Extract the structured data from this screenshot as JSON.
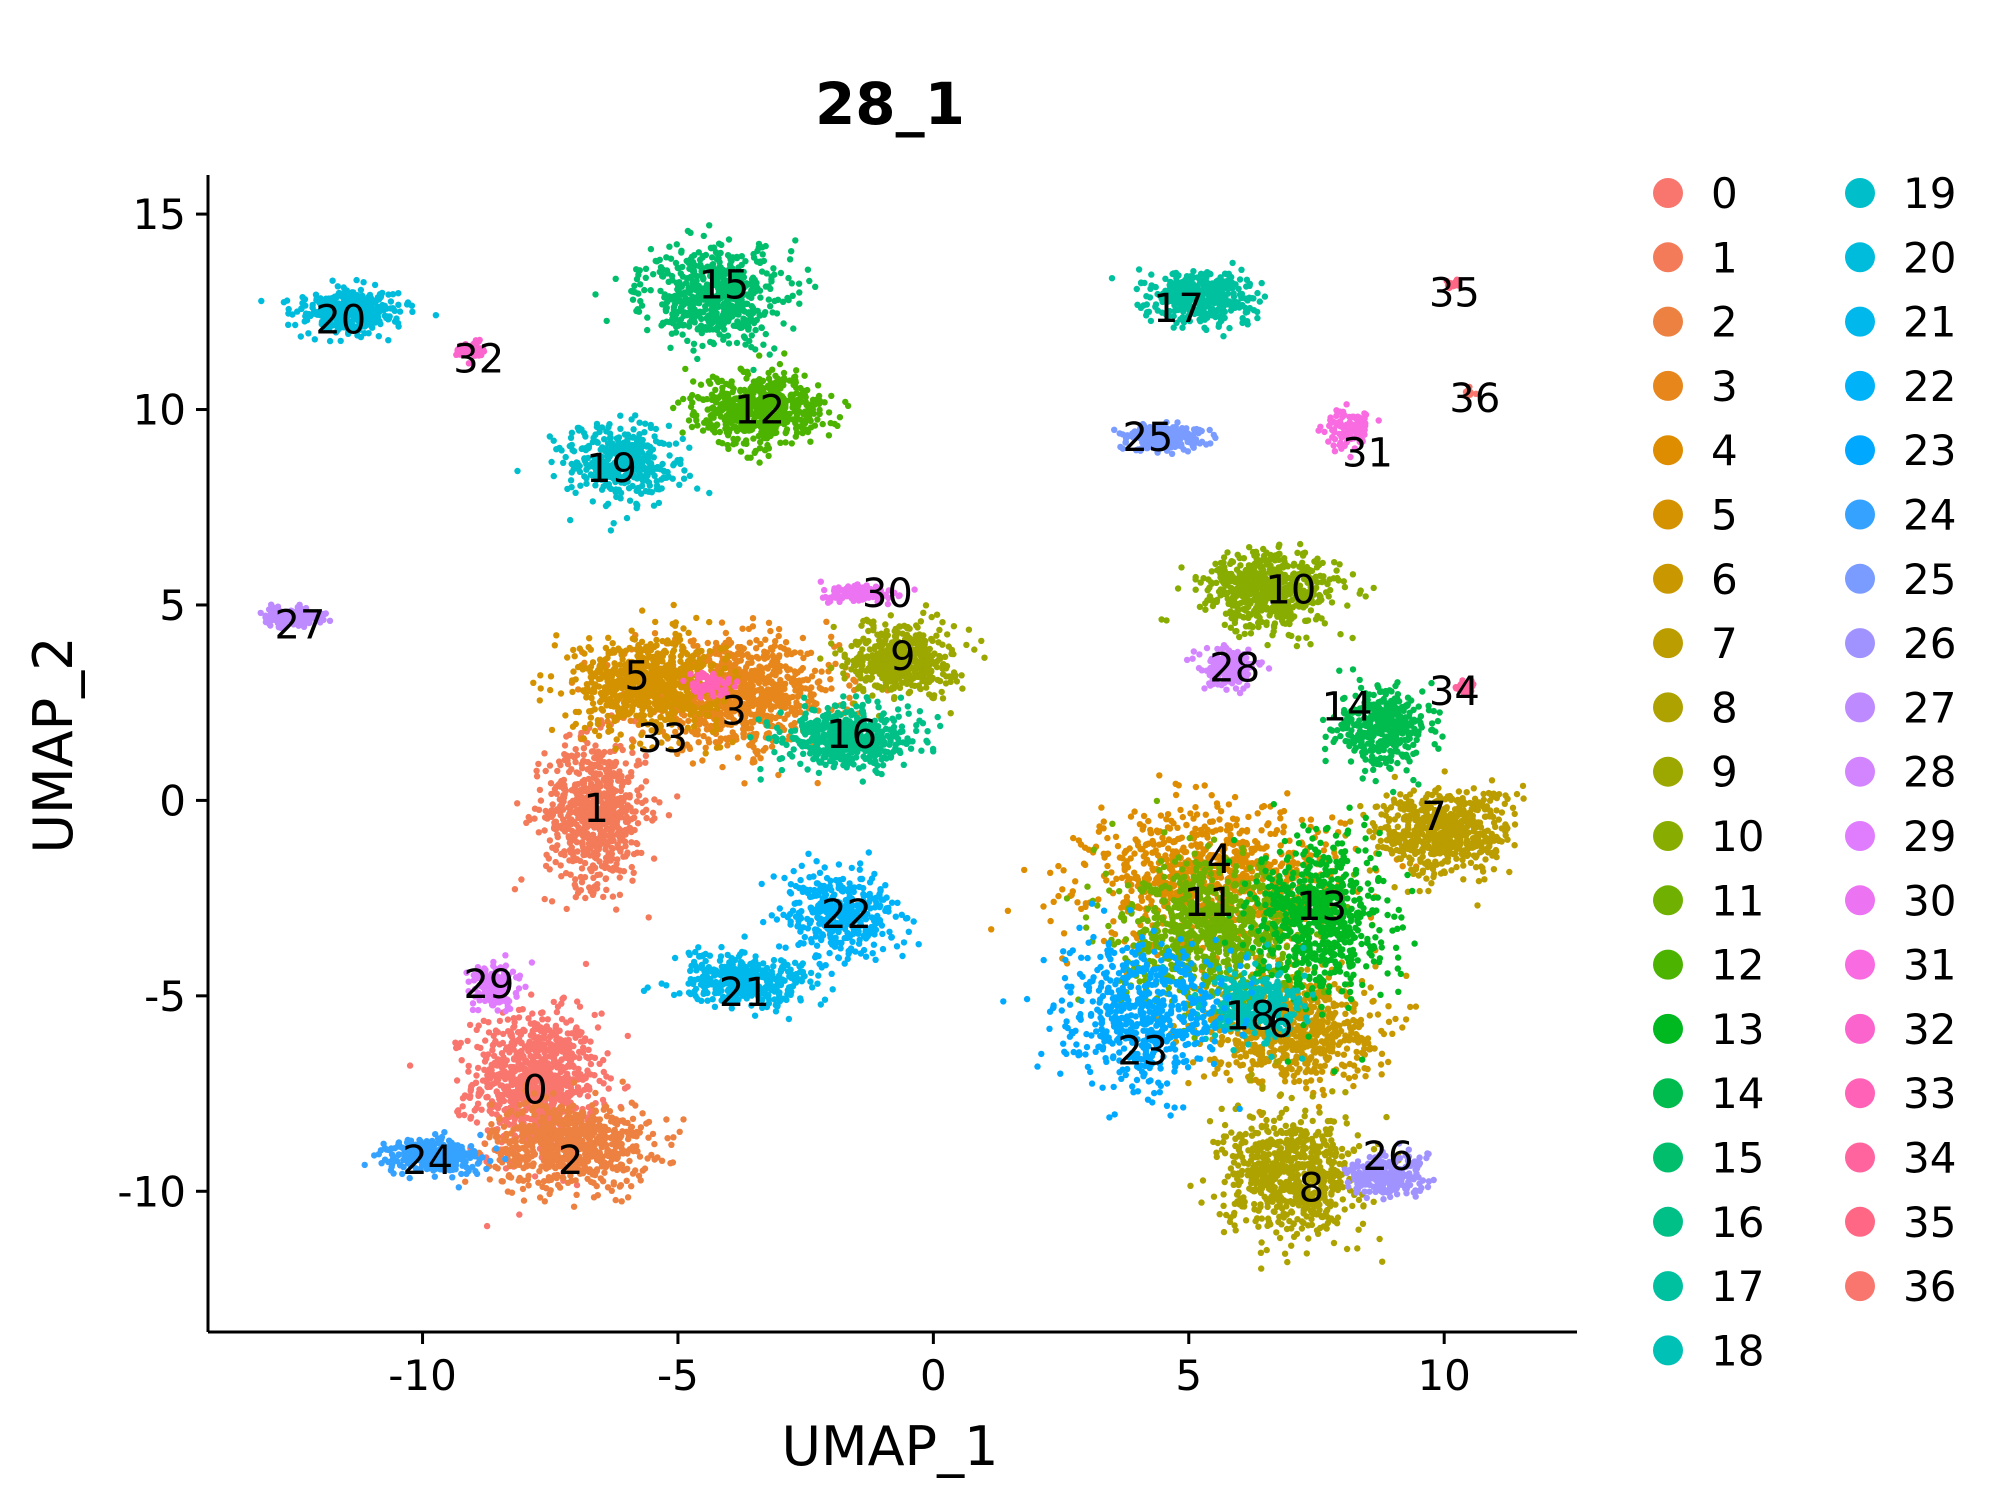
{
  "chart_data": {
    "type": "scatter",
    "title": "28_1",
    "xlabel": "UMAP_1",
    "ylabel": "UMAP_2",
    "xlim": [
      -14.2,
      12.6
    ],
    "ylim": [
      -13.6,
      16.0
    ],
    "xticks": [
      -10,
      -5,
      0,
      5,
      10
    ],
    "yticks": [
      -10,
      -5,
      0,
      5,
      10,
      15
    ],
    "xtick_labels": [
      "-10",
      "-5",
      "0",
      "5",
      "10"
    ],
    "ytick_labels": [
      "-10",
      "-5",
      "0",
      "5",
      "10",
      "15"
    ],
    "grid": false,
    "legend_position": "right",
    "legend_columns": 2,
    "clusters": [
      {
        "name": "0",
        "color": "#F8766D",
        "x": -7.8,
        "y": -7.2,
        "sx": 1.1,
        "sy": 1.6,
        "n": 900
      },
      {
        "name": "1",
        "color": "#F37B59",
        "x": -6.6,
        "y": -0.3,
        "sx": 0.9,
        "sy": 1.7,
        "n": 700
      },
      {
        "name": "2",
        "color": "#ED8141",
        "x": -7.1,
        "y": -8.8,
        "sx": 1.4,
        "sy": 1.0,
        "n": 700
      },
      {
        "name": "3",
        "color": "#E7861B",
        "x": -3.9,
        "y": 2.7,
        "sx": 1.8,
        "sy": 1.2,
        "n": 900
      },
      {
        "name": "4",
        "color": "#DE8C00",
        "x": 5.5,
        "y": -2.0,
        "sx": 2.2,
        "sy": 1.6,
        "n": 900
      },
      {
        "name": "5",
        "color": "#D49200",
        "x": -5.6,
        "y": 3.0,
        "sx": 1.3,
        "sy": 1.1,
        "n": 700
      },
      {
        "name": "6",
        "color": "#C99800",
        "x": 7.0,
        "y": -5.8,
        "sx": 1.5,
        "sy": 1.3,
        "n": 700
      },
      {
        "name": "7",
        "color": "#BB9D00",
        "x": 10.0,
        "y": -0.8,
        "sx": 1.2,
        "sy": 1.0,
        "n": 600
      },
      {
        "name": "8",
        "color": "#ADA200",
        "x": 7.0,
        "y": -9.6,
        "sx": 1.2,
        "sy": 1.4,
        "n": 700
      },
      {
        "name": "9",
        "color": "#9CA700",
        "x": -0.6,
        "y": 3.6,
        "sx": 0.9,
        "sy": 0.8,
        "n": 500
      },
      {
        "name": "10",
        "color": "#88AC00",
        "x": 6.6,
        "y": 5.4,
        "sx": 1.2,
        "sy": 0.9,
        "n": 600
      },
      {
        "name": "11",
        "color": "#6FB000",
        "x": 5.4,
        "y": -3.4,
        "sx": 1.6,
        "sy": 1.6,
        "n": 800
      },
      {
        "name": "12",
        "color": "#4CB400",
        "x": -3.4,
        "y": 10.0,
        "sx": 1.1,
        "sy": 0.8,
        "n": 600
      },
      {
        "name": "13",
        "color": "#00B81F",
        "x": 7.6,
        "y": -3.0,
        "sx": 1.1,
        "sy": 1.8,
        "n": 700
      },
      {
        "name": "14",
        "color": "#00BB4E",
        "x": 8.8,
        "y": 1.9,
        "sx": 0.8,
        "sy": 0.9,
        "n": 400
      },
      {
        "name": "15",
        "color": "#00BE6C",
        "x": -4.3,
        "y": 12.9,
        "sx": 1.2,
        "sy": 1.1,
        "n": 600
      },
      {
        "name": "16",
        "color": "#00C087",
        "x": -1.7,
        "y": 1.6,
        "sx": 1.2,
        "sy": 0.7,
        "n": 500
      },
      {
        "name": "17",
        "color": "#00C19F",
        "x": 5.3,
        "y": 12.9,
        "sx": 0.9,
        "sy": 0.6,
        "n": 400
      },
      {
        "name": "18",
        "color": "#00C1B5",
        "x": 6.2,
        "y": -5.3,
        "sx": 0.9,
        "sy": 0.9,
        "n": 300
      },
      {
        "name": "19",
        "color": "#00BFCA",
        "x": -6.1,
        "y": 8.6,
        "sx": 1.0,
        "sy": 0.9,
        "n": 400
      },
      {
        "name": "20",
        "color": "#00BCDC",
        "x": -11.4,
        "y": 12.5,
        "sx": 0.9,
        "sy": 0.5,
        "n": 400
      },
      {
        "name": "21",
        "color": "#00B8EC",
        "x": -3.7,
        "y": -4.6,
        "sx": 1.2,
        "sy": 0.6,
        "n": 400
      },
      {
        "name": "22",
        "color": "#00B2F8",
        "x": -1.8,
        "y": -2.9,
        "sx": 1.0,
        "sy": 1.0,
        "n": 400
      },
      {
        "name": "23",
        "color": "#00A9FF",
        "x": 4.1,
        "y": -5.5,
        "sx": 1.4,
        "sy": 1.6,
        "n": 600
      },
      {
        "name": "24",
        "color": "#35A2FF",
        "x": -9.8,
        "y": -9.1,
        "sx": 0.9,
        "sy": 0.4,
        "n": 300
      },
      {
        "name": "25",
        "color": "#7A9BFF",
        "x": 4.5,
        "y": 9.3,
        "sx": 0.7,
        "sy": 0.3,
        "n": 250
      },
      {
        "name": "26",
        "color": "#A193FF",
        "x": 8.9,
        "y": -9.6,
        "sx": 0.7,
        "sy": 0.5,
        "n": 250
      },
      {
        "name": "27",
        "color": "#BD8AFF",
        "x": -12.5,
        "y": 4.7,
        "sx": 0.5,
        "sy": 0.2,
        "n": 150
      },
      {
        "name": "28",
        "color": "#D385FF",
        "x": 5.8,
        "y": 3.4,
        "sx": 0.5,
        "sy": 0.4,
        "n": 200
      },
      {
        "name": "29",
        "color": "#E07DFF",
        "x": -8.6,
        "y": -4.8,
        "sx": 0.4,
        "sy": 0.5,
        "n": 150
      },
      {
        "name": "30",
        "color": "#EC74F2",
        "x": -1.5,
        "y": 5.3,
        "sx": 0.6,
        "sy": 0.2,
        "n": 120
      },
      {
        "name": "31",
        "color": "#F86BE1",
        "x": 8.1,
        "y": 9.5,
        "sx": 0.4,
        "sy": 0.5,
        "n": 100
      },
      {
        "name": "32",
        "color": "#FC64CD",
        "x": -9.1,
        "y": 11.5,
        "sx": 0.3,
        "sy": 0.2,
        "n": 60
      },
      {
        "name": "33",
        "color": "#FF62B6",
        "x": -4.4,
        "y": 3.0,
        "sx": 0.4,
        "sy": 0.3,
        "n": 60
      },
      {
        "name": "34",
        "color": "#FF649E",
        "x": 10.4,
        "y": 2.9,
        "sx": 0.2,
        "sy": 0.15,
        "n": 40
      },
      {
        "name": "35",
        "color": "#FF6784",
        "x": 10.2,
        "y": 13.2,
        "sx": 0.12,
        "sy": 0.12,
        "n": 15
      },
      {
        "name": "36",
        "color": "#F8766D",
        "x": 10.5,
        "y": 10.4,
        "sx": 0.12,
        "sy": 0.12,
        "n": 12
      }
    ],
    "cluster_labels": [
      {
        "text": "0",
        "x": -7.8,
        "y": -7.4
      },
      {
        "text": "1",
        "x": -6.6,
        "y": -0.2
      },
      {
        "text": "2",
        "x": -7.1,
        "y": -9.2
      },
      {
        "text": "3",
        "x": -3.9,
        "y": 2.3
      },
      {
        "text": "4",
        "x": 5.6,
        "y": -1.5
      },
      {
        "text": "5",
        "x": -5.8,
        "y": 3.2
      },
      {
        "text": "6",
        "x": 6.8,
        "y": -5.7
      },
      {
        "text": "7",
        "x": 9.8,
        "y": -0.4
      },
      {
        "text": "8",
        "x": 7.4,
        "y": -9.9
      },
      {
        "text": "9",
        "x": -0.6,
        "y": 3.7
      },
      {
        "text": "10",
        "x": 7.0,
        "y": 5.4
      },
      {
        "text": "11",
        "x": 5.4,
        "y": -2.6
      },
      {
        "text": "12",
        "x": -3.4,
        "y": 10.0
      },
      {
        "text": "13",
        "x": 7.6,
        "y": -2.7
      },
      {
        "text": "14",
        "x": 8.1,
        "y": 2.4
      },
      {
        "text": "15",
        "x": -4.1,
        "y": 13.2
      },
      {
        "text": "16",
        "x": -1.6,
        "y": 1.7
      },
      {
        "text": "17",
        "x": 4.8,
        "y": 12.6
      },
      {
        "text": "18",
        "x": 6.2,
        "y": -5.5
      },
      {
        "text": "19",
        "x": -6.3,
        "y": 8.5
      },
      {
        "text": "20",
        "x": -11.6,
        "y": 12.3
      },
      {
        "text": "21",
        "x": -3.7,
        "y": -4.9
      },
      {
        "text": "22",
        "x": -1.7,
        "y": -2.9
      },
      {
        "text": "23",
        "x": 4.1,
        "y": -6.4
      },
      {
        "text": "24",
        "x": -9.9,
        "y": -9.2
      },
      {
        "text": "25",
        "x": 4.2,
        "y": 9.3
      },
      {
        "text": "26",
        "x": 8.9,
        "y": -9.1
      },
      {
        "text": "27",
        "x": -12.4,
        "y": 4.5
      },
      {
        "text": "28",
        "x": 5.9,
        "y": 3.4
      },
      {
        "text": "29",
        "x": -8.7,
        "y": -4.7
      },
      {
        "text": "30",
        "x": -0.9,
        "y": 5.3
      },
      {
        "text": "31",
        "x": 8.5,
        "y": 8.9
      },
      {
        "text": "32",
        "x": -8.9,
        "y": 11.3
      },
      {
        "text": "33",
        "x": -5.3,
        "y": 1.6
      },
      {
        "text": "34",
        "x": 10.2,
        "y": 2.8
      },
      {
        "text": "35",
        "x": 10.2,
        "y": 13.0
      },
      {
        "text": "36",
        "x": 10.6,
        "y": 10.3
      }
    ]
  }
}
